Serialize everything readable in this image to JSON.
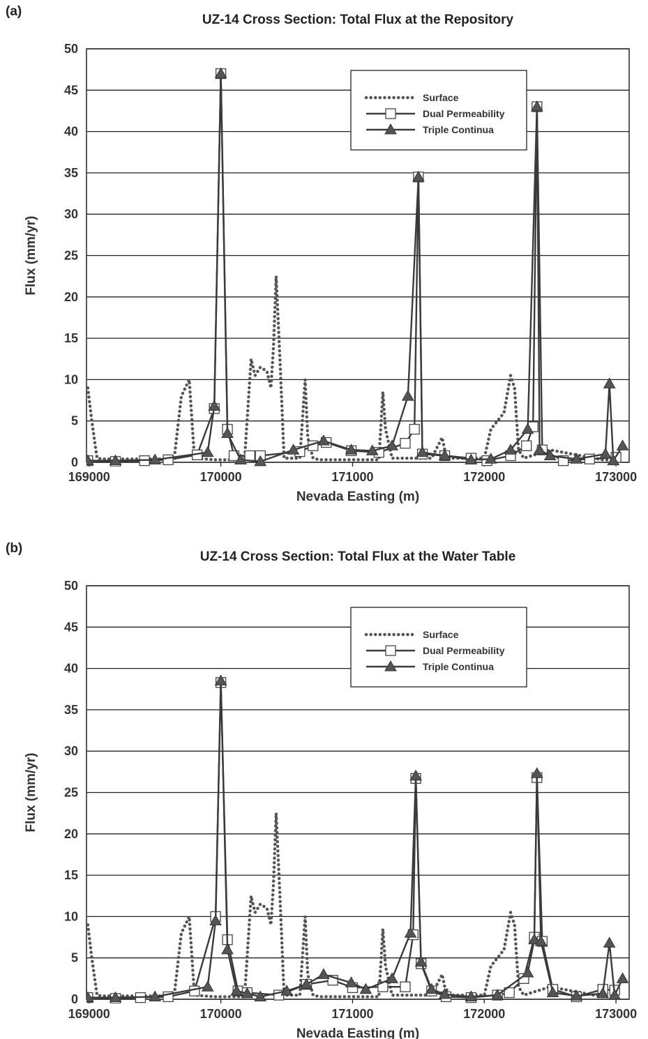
{
  "chart_data": [
    {
      "panel_label": "(a)",
      "type": "line",
      "title": "UZ-14 Cross Section: Total Flux at the Repository",
      "xlabel": "Nevada Easting (m)",
      "ylabel": "Flux (mm/yr)",
      "xlim": [
        168980,
        173100
      ],
      "ylim": [
        0,
        50
      ],
      "xticks": [
        "169000",
        "170000",
        "171000",
        "172000",
        "173000"
      ],
      "yticks": [
        "0",
        "5",
        "10",
        "15",
        "20",
        "25",
        "30",
        "35",
        "40",
        "45",
        "50"
      ],
      "grid": true,
      "legend_position": "top-right",
      "legend": [
        "Surface",
        "Dual Permeability",
        "Triple Continua"
      ],
      "series": [
        {
          "name": "Surface",
          "style": "dotted",
          "x": [
            168990,
            169020,
            169060,
            169100,
            169300,
            169600,
            169650,
            169700,
            169760,
            169800,
            169950,
            170180,
            170230,
            170260,
            170300,
            170350,
            170380,
            170400,
            170420,
            170450,
            170480,
            170600,
            170640,
            170660,
            170700,
            170750,
            171000,
            171200,
            171230,
            171250,
            171300,
            171600,
            171680,
            171700,
            171740,
            171800,
            172000,
            172050,
            172100,
            172150,
            172200,
            172230,
            172260,
            172300,
            172500,
            172900,
            173000
          ],
          "y": [
            9,
            5,
            0.5,
            0.4,
            0.4,
            0.4,
            1,
            8,
            10,
            0.5,
            0.3,
            0.3,
            12.5,
            10.5,
            11.5,
            11,
            9,
            14,
            22.5,
            12,
            0.5,
            0.5,
            10,
            3,
            0.5,
            0.3,
            0.3,
            0.3,
            8.5,
            4,
            0.5,
            0.5,
            3,
            1.5,
            0.5,
            0.5,
            0.5,
            4,
            5,
            6,
            10.5,
            9,
            1.5,
            0.5,
            1.5,
            0.3,
            0.3
          ]
        },
        {
          "name": "Dual Permeability",
          "style": "solid-square",
          "x": [
            168990,
            169200,
            169420,
            169600,
            169820,
            169950,
            170000,
            170050,
            170100,
            170220,
            170300,
            170600,
            170700,
            170800,
            170990,
            171200,
            171400,
            171470,
            171500,
            171530,
            171700,
            171900,
            172020,
            172200,
            172320,
            172370,
            172400,
            172440,
            172600,
            172800,
            173000
          ],
          "y": [
            0.2,
            0.1,
            0.2,
            0.3,
            0.9,
            6.5,
            47,
            4,
            0.8,
            0.8,
            0.8,
            1.3,
            2.0,
            2.4,
            1.4,
            1.2,
            2.3,
            4.0,
            34.5,
            1.0,
            0.8,
            0.5,
            0.2,
            0.8,
            2.0,
            4.3,
            43,
            1.5,
            0.2,
            0.4,
            0.6
          ]
        },
        {
          "name": "Triple Continua",
          "style": "solid-triangle",
          "x": [
            168990,
            169200,
            169500,
            169900,
            169950,
            170000,
            170050,
            170150,
            170300,
            170550,
            170780,
            170990,
            171150,
            171300,
            171420,
            171500,
            171530,
            171700,
            171900,
            172050,
            172200,
            172330,
            172400,
            172420,
            172500,
            172700,
            172920,
            172950,
            172980,
            173050
          ],
          "y": [
            0.2,
            0.2,
            0.3,
            1.2,
            6.8,
            47,
            3.5,
            0.3,
            0.1,
            1.5,
            2.6,
            1.5,
            1.4,
            2.0,
            8,
            34.5,
            1.2,
            0.8,
            0.3,
            0.4,
            1.5,
            4,
            43,
            1.5,
            0.8,
            0.4,
            1.0,
            9.5,
            0.2,
            2.0
          ]
        }
      ]
    },
    {
      "panel_label": "(b)",
      "type": "line",
      "title": "UZ-14 Cross Section: Total Flux at the Water Table",
      "xlabel": "Nevada Easting (m)",
      "ylabel": "Flux (mm/yr)",
      "xlim": [
        168980,
        173100
      ],
      "ylim": [
        0,
        50
      ],
      "xticks": [
        "169000",
        "170000",
        "171000",
        "172000",
        "173000"
      ],
      "yticks": [
        "0",
        "5",
        "10",
        "15",
        "20",
        "25",
        "30",
        "35",
        "40",
        "45",
        "50"
      ],
      "grid": true,
      "legend_position": "top-right",
      "legend": [
        "Surface",
        "Dual Permeability",
        "Triple Continua"
      ],
      "series": [
        {
          "name": "Surface",
          "style": "dotted",
          "x": [
            168990,
            169020,
            169060,
            169100,
            169300,
            169600,
            169650,
            169700,
            169760,
            169800,
            169950,
            170180,
            170230,
            170260,
            170300,
            170350,
            170380,
            170400,
            170420,
            170450,
            170480,
            170600,
            170640,
            170660,
            170700,
            170750,
            171000,
            171200,
            171230,
            171250,
            171300,
            171600,
            171680,
            171700,
            171740,
            171800,
            172000,
            172050,
            172100,
            172150,
            172200,
            172230,
            172260,
            172300,
            172500,
            172900,
            173000
          ],
          "y": [
            9,
            5,
            0.5,
            0.4,
            0.4,
            0.4,
            1,
            8,
            10,
            0.5,
            0.3,
            0.3,
            12.5,
            10.5,
            11.5,
            11,
            9,
            14,
            22.5,
            12,
            0.5,
            0.5,
            10,
            3,
            0.5,
            0.3,
            0.3,
            0.3,
            8.5,
            4,
            0.5,
            0.5,
            3,
            1.5,
            0.5,
            0.5,
            0.5,
            4,
            5,
            6,
            10.5,
            9,
            1.5,
            0.5,
            1.5,
            0.3,
            0.3
          ]
        },
        {
          "name": "Dual Permeability",
          "style": "solid-square",
          "x": [
            168990,
            169200,
            169390,
            169600,
            169800,
            169960,
            170000,
            170050,
            170130,
            170200,
            170440,
            170650,
            170850,
            171000,
            171230,
            171400,
            171460,
            171480,
            171520,
            171600,
            171710,
            171900,
            172100,
            172190,
            172300,
            172380,
            172400,
            172440,
            172520,
            172700,
            172900,
            172990
          ],
          "y": [
            0.2,
            0.1,
            0.2,
            0.3,
            1.0,
            10,
            38.3,
            7.2,
            1.0,
            0.8,
            0.5,
            1.8,
            2.3,
            1.4,
            1.5,
            1.5,
            7.8,
            26.7,
            4.3,
            1.0,
            0.3,
            0.2,
            0.5,
            0.8,
            2.5,
            7.5,
            26.8,
            7.0,
            1.2,
            0.3,
            1.2,
            1.1
          ]
        },
        {
          "name": "Triple Continua",
          "style": "solid-triangle",
          "x": [
            168990,
            169200,
            169500,
            169900,
            169960,
            170000,
            170050,
            170120,
            170200,
            170300,
            170500,
            170650,
            170780,
            170990,
            171100,
            171300,
            171440,
            171480,
            171520,
            171600,
            171700,
            171900,
            172100,
            172330,
            172380,
            172400,
            172430,
            172520,
            172700,
            172900,
            172950,
            172990,
            173050
          ],
          "y": [
            0.2,
            0.2,
            0.3,
            1.5,
            9.5,
            38.5,
            6.0,
            1.0,
            0.7,
            0.3,
            1.0,
            1.8,
            3.0,
            2.0,
            1.2,
            2.5,
            8.0,
            27.0,
            4.5,
            1.2,
            0.6,
            0.3,
            0.5,
            3.2,
            7.2,
            27.3,
            7.0,
            0.8,
            0.4,
            0.7,
            6.8,
            0.5,
            2.5
          ]
        }
      ]
    }
  ]
}
